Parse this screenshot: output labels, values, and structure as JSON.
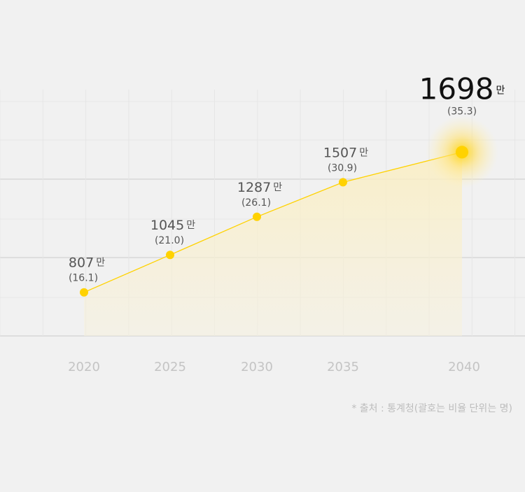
{
  "chart_data": {
    "type": "line",
    "categories": [
      "2020",
      "2025",
      "2030",
      "2035",
      "2040"
    ],
    "values": [
      807,
      1045,
      1287,
      1507,
      1698
    ],
    "unit": "만",
    "share_labels": [
      "(16.1)",
      "(21.0)",
      "(26.1)",
      "(30.9)",
      "(35.3)"
    ],
    "color": "#ffd200",
    "ylim": [
      530,
      2020
    ],
    "source": "* 출처 : 통계청(괄호는 비율 단위는 명)"
  }
}
